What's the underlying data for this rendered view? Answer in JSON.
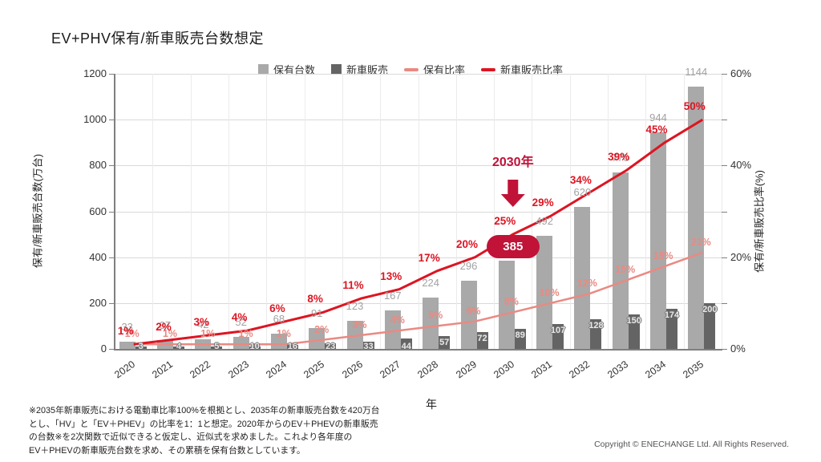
{
  "page": {
    "title": "EV+PHV保有/新車販売台数想定",
    "footnote": "※2035年新車販売における電動車比率100%を根拠とし、2035年の新車販売台数を420万台\nとし、「HV」と「EV＋PHEV」の比率を1：1と想定。2020年からのEV＋PHEVの新車販売\nの台数※を2次関数で近似できると仮定し、近似式を求めました。これより各年度の\nEV＋PHEVの新車販売台数を求め、その累積を保有台数としています。",
    "copyright": "Copyright © ENECHANGE Ltd.  All Rights Reserved."
  },
  "colors": {
    "stock_bar": "#a9a9a9",
    "sales_bar": "#646464",
    "stock_label": "#a2a2a2",
    "ratio_line_sales": "#dd1522",
    "ratio_line_stock": "#e98a82",
    "annotation_red": "#c11238",
    "grid": "#d9d9d9",
    "axis": "#7f7f7f"
  },
  "chart_data": {
    "type": "bar+line",
    "title": "EV+PHV保有/新車販売台数想定",
    "categories": [
      "2020",
      "2021",
      "2022",
      "2023",
      "2024",
      "2025",
      "2026",
      "2027",
      "2028",
      "2029",
      "2030",
      "2031",
      "2032",
      "2033",
      "2034",
      "2035"
    ],
    "series": [
      {
        "name": "保有台数",
        "kind": "bar",
        "axis": "left",
        "color": "#a9a9a9",
        "values": [
          33,
          37,
          42,
          52,
          68,
          91,
          123,
          167,
          224,
          296,
          385,
          492,
          620,
          770,
          944,
          1144
        ]
      },
      {
        "name": "新車販売",
        "kind": "bar",
        "axis": "left",
        "color": "#646464",
        "values": [
          3,
          4,
          5,
          10,
          16,
          23,
          33,
          44,
          57,
          72,
          89,
          107,
          128,
          150,
          174,
          200
        ]
      },
      {
        "name": "保有比率",
        "kind": "line",
        "axis": "right",
        "color": "#e98a82",
        "values": [
          1,
          1,
          1,
          1,
          1,
          2,
          3,
          4,
          5,
          6,
          8,
          10,
          12,
          15,
          18,
          21
        ]
      },
      {
        "name": "新車販売比率",
        "kind": "line",
        "axis": "right",
        "color": "#dd1522",
        "values": [
          1,
          2,
          3,
          4,
          6,
          8,
          11,
          13,
          17,
          20,
          25,
          29,
          34,
          39,
          45,
          50
        ]
      }
    ],
    "xlabel": "年",
    "ylabel_left": "保有/新車販売台数(万台)",
    "ylabel_right": "保有/新車販売比率(%)",
    "ylim_left": [
      0,
      1200
    ],
    "yticks_left": [
      0,
      200,
      400,
      600,
      800,
      1000,
      1200
    ],
    "ylim_right": [
      0,
      60
    ],
    "yticks_right_labeled": [
      0,
      20,
      40,
      60
    ],
    "yticks_right_minor": [
      10,
      30,
      50
    ],
    "grid": true,
    "legend_position": "top",
    "annotation": {
      "year_index": 10,
      "label": "2030年",
      "badge_value": "385"
    }
  }
}
